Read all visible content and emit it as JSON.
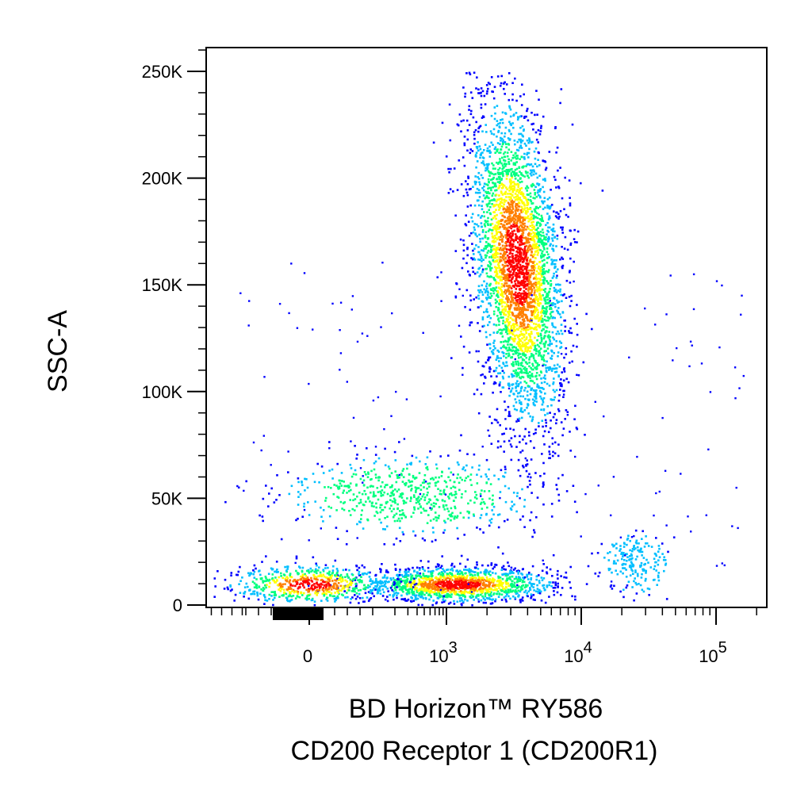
{
  "chart_data": {
    "type": "scatter",
    "style": "flow-cytometry-density-dot-plot",
    "xlabel_line1": "BD Horizon™ RY586",
    "xlabel_line2": "CD200 Receptor 1 (CD200R1)",
    "ylabel": "SSC-A",
    "x_scale": "biexponential",
    "y_scale": "linear",
    "ylim": [
      0,
      262144
    ],
    "y_ticks": [
      {
        "value": 0,
        "label": "0"
      },
      {
        "value": 50000,
        "label": "50K"
      },
      {
        "value": 100000,
        "label": "100K"
      },
      {
        "value": 150000,
        "label": "150K"
      },
      {
        "value": 200000,
        "label": "200K"
      },
      {
        "value": 250000,
        "label": "250K"
      }
    ],
    "x_ticks": [
      {
        "value": 0,
        "base": "0",
        "exp": ""
      },
      {
        "value": 1000,
        "base": "10",
        "exp": "3"
      },
      {
        "value": 10000,
        "base": "10",
        "exp": "4"
      },
      {
        "value": 100000,
        "base": "10",
        "exp": "5"
      }
    ],
    "grid": false,
    "legend": "none",
    "density_colors": [
      "#0000ff",
      "#00bfff",
      "#00ff7f",
      "#ffff00",
      "#ff7f00",
      "#ff0000"
    ],
    "populations": [
      {
        "x_center": 3300,
        "y_center": 160000,
        "x_spread_decades": 0.16,
        "y_spread": 38000,
        "weight": 0.55
      },
      {
        "x_center": 1200,
        "y_center": 10000,
        "x_spread_decades": 0.35,
        "y_spread": 4000,
        "weight": 0.22
      },
      {
        "x_center": 0,
        "y_center": 10000,
        "x_spread_decades": 0.3,
        "y_spread": 4500,
        "weight": 0.1
      },
      {
        "x_center": 300,
        "y_center": 52000,
        "x_spread_decades": 0.45,
        "y_spread": 9000,
        "weight": 0.1
      },
      {
        "x_center": 25000,
        "y_center": 20000,
        "x_spread_decades": 0.12,
        "y_spread": 7000,
        "weight": 0.03
      }
    ]
  }
}
